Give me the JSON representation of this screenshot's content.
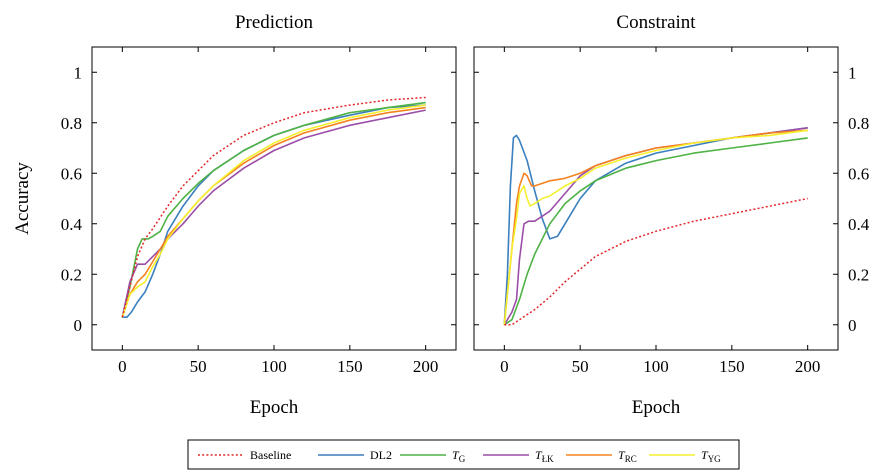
{
  "legend": [
    {
      "series": "Baseline",
      "label": "Baseline",
      "sub": ""
    },
    {
      "series": "DL2",
      "label": "DL2",
      "sub": ""
    },
    {
      "series": "T_G",
      "label": "T",
      "sub": "G"
    },
    {
      "series": "T_LK",
      "label": "T",
      "sub": "ŁK"
    },
    {
      "series": "T_RC",
      "label": "T",
      "sub": "RC"
    },
    {
      "series": "T_YG",
      "label": "T",
      "sub": "YG"
    }
  ],
  "colors": {
    "Baseline": "#e3272b",
    "DL2": "#3a7fbf",
    "T_G": "#4fb245",
    "T_LK": "#9b4ea8",
    "T_RC": "#f58220",
    "T_YG": "#f4f02e"
  },
  "chart_data": [
    {
      "type": "line",
      "title": "Prediction",
      "xlabel": "Epoch",
      "ylabel": "Accuracy",
      "xlim": [
        -20,
        220
      ],
      "ylim": [
        -0.1,
        1.1
      ],
      "xticks": [
        "0",
        "50",
        "100",
        "150",
        "200"
      ],
      "yticks": [
        "0",
        "0.2",
        "0.4",
        "0.6",
        "0.8",
        "1"
      ],
      "y_axis_side": "left",
      "grid": false,
      "series": [
        {
          "name": "Baseline",
          "style": "dotted",
          "x": [
            0,
            5,
            10,
            15,
            20,
            30,
            40,
            50,
            60,
            80,
            100,
            120,
            150,
            175,
            200
          ],
          "values": [
            0.03,
            0.15,
            0.27,
            0.34,
            0.38,
            0.47,
            0.55,
            0.61,
            0.67,
            0.75,
            0.8,
            0.84,
            0.87,
            0.89,
            0.9
          ]
        },
        {
          "name": "DL2",
          "x": [
            0,
            3,
            6,
            10,
            15,
            20,
            25,
            30,
            35,
            40,
            50,
            60,
            80,
            100,
            120,
            150,
            175,
            200
          ],
          "values": [
            0.03,
            0.03,
            0.05,
            0.09,
            0.13,
            0.2,
            0.28,
            0.37,
            0.42,
            0.47,
            0.55,
            0.61,
            0.69,
            0.75,
            0.79,
            0.83,
            0.86,
            0.87
          ]
        },
        {
          "name": "T_G",
          "x": [
            0,
            5,
            10,
            13,
            17,
            20,
            25,
            30,
            40,
            50,
            60,
            80,
            100,
            120,
            150,
            175,
            200
          ],
          "values": [
            0.03,
            0.15,
            0.3,
            0.34,
            0.34,
            0.35,
            0.37,
            0.43,
            0.5,
            0.56,
            0.61,
            0.69,
            0.75,
            0.79,
            0.84,
            0.86,
            0.88
          ]
        },
        {
          "name": "T_LK",
          "x": [
            0,
            5,
            10,
            15,
            20,
            25,
            30,
            40,
            50,
            60,
            80,
            100,
            120,
            150,
            175,
            200
          ],
          "values": [
            0.03,
            0.17,
            0.24,
            0.24,
            0.27,
            0.3,
            0.34,
            0.4,
            0.47,
            0.53,
            0.62,
            0.69,
            0.74,
            0.79,
            0.82,
            0.85
          ]
        },
        {
          "name": "T_RC",
          "x": [
            0,
            5,
            10,
            15,
            20,
            25,
            30,
            40,
            50,
            60,
            80,
            100,
            120,
            150,
            175,
            200
          ],
          "values": [
            0.03,
            0.12,
            0.17,
            0.2,
            0.25,
            0.3,
            0.35,
            0.42,
            0.49,
            0.55,
            0.64,
            0.71,
            0.76,
            0.81,
            0.84,
            0.86
          ]
        },
        {
          "name": "T_YG",
          "x": [
            0,
            5,
            10,
            15,
            20,
            25,
            30,
            40,
            50,
            60,
            80,
            100,
            120,
            150,
            175,
            200
          ],
          "values": [
            0.03,
            0.12,
            0.15,
            0.17,
            0.23,
            0.28,
            0.34,
            0.42,
            0.49,
            0.55,
            0.65,
            0.72,
            0.77,
            0.82,
            0.85,
            0.87
          ]
        }
      ]
    },
    {
      "type": "line",
      "title": "Constraint",
      "xlabel": "Epoch",
      "ylabel": "",
      "xlim": [
        -20,
        220
      ],
      "ylim": [
        -0.1,
        1.1
      ],
      "xticks": [
        "0",
        "50",
        "100",
        "150",
        "200"
      ],
      "yticks": [
        "0",
        "0.2",
        "0.4",
        "0.6",
        "0.8",
        "1"
      ],
      "y_axis_side": "right",
      "grid": false,
      "series": [
        {
          "name": "Baseline",
          "style": "dotted",
          "x": [
            0,
            5,
            10,
            20,
            30,
            40,
            50,
            60,
            80,
            100,
            125,
            150,
            175,
            200
          ],
          "values": [
            0,
            0,
            0.02,
            0.06,
            0.11,
            0.17,
            0.22,
            0.27,
            0.33,
            0.37,
            0.41,
            0.44,
            0.47,
            0.5
          ]
        },
        {
          "name": "DL2",
          "x": [
            0,
            2,
            4,
            6,
            8,
            10,
            15,
            20,
            25,
            30,
            35,
            40,
            50,
            60,
            80,
            100,
            125,
            150,
            175,
            200
          ],
          "values": [
            0,
            0.2,
            0.55,
            0.74,
            0.75,
            0.73,
            0.65,
            0.53,
            0.42,
            0.34,
            0.35,
            0.4,
            0.5,
            0.57,
            0.64,
            0.68,
            0.71,
            0.74,
            0.76,
            0.78
          ]
        },
        {
          "name": "T_G",
          "x": [
            0,
            5,
            10,
            15,
            20,
            30,
            40,
            50,
            60,
            80,
            100,
            125,
            150,
            175,
            200
          ],
          "values": [
            0,
            0.02,
            0.1,
            0.2,
            0.28,
            0.4,
            0.48,
            0.53,
            0.57,
            0.62,
            0.65,
            0.68,
            0.7,
            0.72,
            0.74
          ]
        },
        {
          "name": "T_LK",
          "x": [
            0,
            5,
            8,
            10,
            13,
            16,
            20,
            25,
            30,
            40,
            50,
            60,
            80,
            100,
            125,
            150,
            175,
            200
          ],
          "values": [
            0,
            0.05,
            0.1,
            0.26,
            0.4,
            0.41,
            0.41,
            0.43,
            0.45,
            0.52,
            0.59,
            0.63,
            0.67,
            0.7,
            0.72,
            0.74,
            0.76,
            0.78
          ]
        },
        {
          "name": "T_RC",
          "x": [
            0,
            5,
            8,
            10,
            13,
            15,
            18,
            20,
            25,
            30,
            40,
            50,
            60,
            80,
            100,
            125,
            150,
            175,
            200
          ],
          "values": [
            0,
            0.3,
            0.48,
            0.55,
            0.6,
            0.59,
            0.55,
            0.55,
            0.56,
            0.57,
            0.58,
            0.6,
            0.63,
            0.67,
            0.7,
            0.72,
            0.74,
            0.76,
            0.77
          ]
        },
        {
          "name": "T_YG",
          "x": [
            0,
            5,
            8,
            10,
            13,
            15,
            17,
            20,
            25,
            30,
            40,
            50,
            60,
            80,
            100,
            125,
            150,
            175,
            200
          ],
          "values": [
            0,
            0.3,
            0.42,
            0.52,
            0.55,
            0.5,
            0.47,
            0.48,
            0.5,
            0.51,
            0.55,
            0.58,
            0.62,
            0.66,
            0.69,
            0.72,
            0.74,
            0.75,
            0.77
          ]
        }
      ]
    }
  ]
}
